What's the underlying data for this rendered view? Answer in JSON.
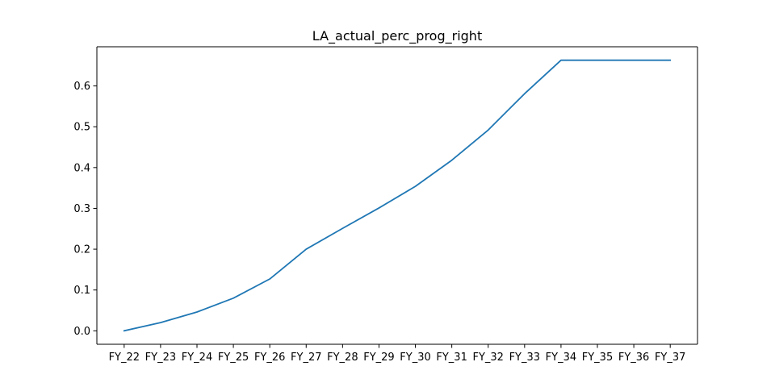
{
  "chart_data": {
    "type": "line",
    "title": "LA_actual_perc_prog_right",
    "xlabel": "",
    "ylabel": "",
    "categories": [
      "FY_22",
      "FY_23",
      "FY_24",
      "FY_25",
      "FY_26",
      "FY_27",
      "FY_28",
      "FY_29",
      "FY_30",
      "FY_31",
      "FY_32",
      "FY_33",
      "FY_34",
      "FY_35",
      "FY_36",
      "FY_37"
    ],
    "series": [
      {
        "values": [
          0.0,
          0.02,
          0.046,
          0.08,
          0.127,
          0.2,
          0.251,
          0.301,
          0.354,
          0.418,
          0.492,
          0.581,
          0.663,
          0.663,
          0.663,
          0.663
        ]
      }
    ],
    "ylim": [
      -0.033,
      0.696
    ],
    "yticks": [
      "0.0",
      "0.1",
      "0.2",
      "0.3",
      "0.4",
      "0.5",
      "0.6"
    ],
    "grid": false,
    "line_color": "#1f77b4"
  }
}
